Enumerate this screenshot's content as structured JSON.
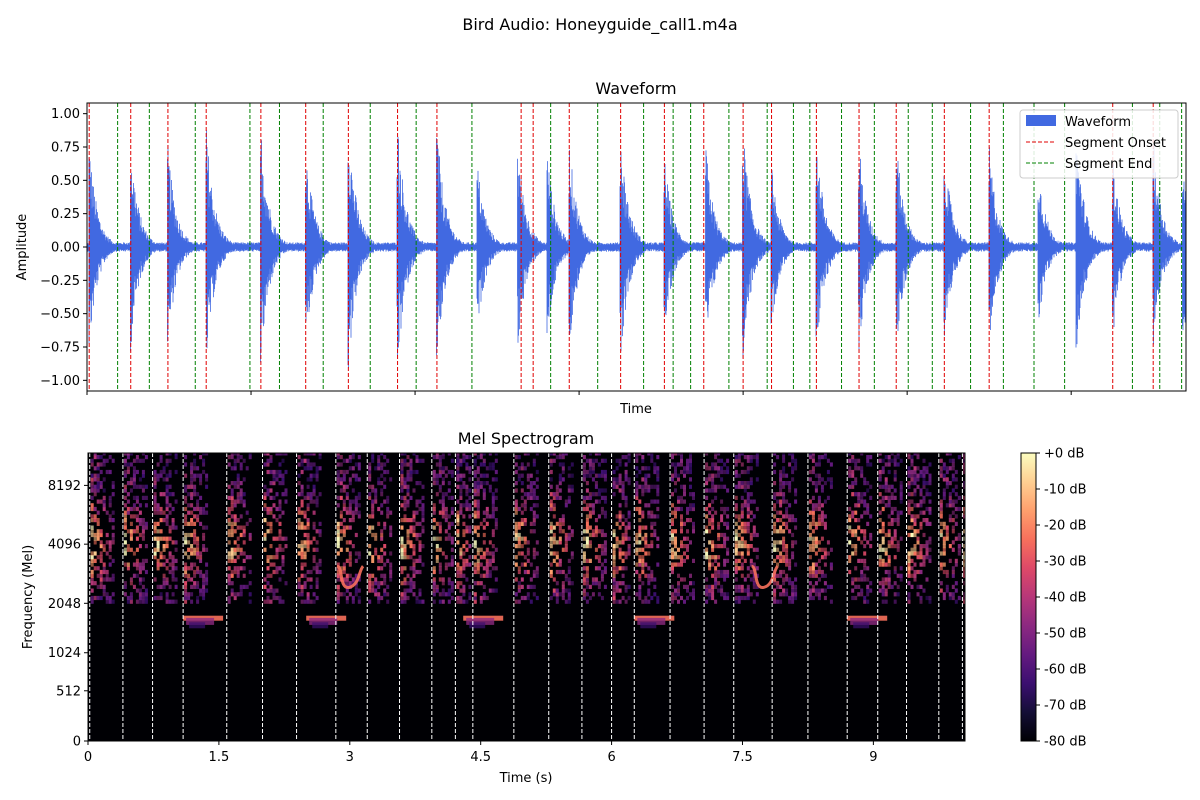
{
  "figure": {
    "suptitle": "Bird Audio: Honeyguide_call1.m4a"
  },
  "chart_data": [
    {
      "type": "line",
      "title": "Waveform",
      "xlabel": "Time",
      "ylabel": "Amplitude",
      "xlim": [
        0,
        10.05
      ],
      "ylim": [
        -1.08,
        1.08
      ],
      "yticks": [
        1.0,
        0.75,
        0.5,
        0.25,
        0.0,
        -0.25,
        -0.5,
        -0.75,
        -1.0
      ],
      "ytick_labels": [
        "1.00",
        "0.75",
        "0.50",
        "0.25",
        "0.00",
        "−0.25",
        "−0.50",
        "−0.75",
        "−1.00"
      ],
      "xticks": [
        0,
        1.5,
        3,
        4.5,
        6,
        7.5,
        9
      ],
      "legend": {
        "location": "upper right",
        "entries": [
          {
            "label": "Waveform",
            "color": "#4169e1",
            "style": "patch"
          },
          {
            "label": "Segment Onset",
            "color": "#e00000",
            "style": "dashed"
          },
          {
            "label": "Segment End",
            "color": "#008000",
            "style": "dashed"
          }
        ]
      },
      "segment_onsets": [
        0.02,
        0.4,
        0.74,
        1.09,
        1.59,
        2.0,
        2.39,
        2.84,
        3.2,
        3.97,
        4.08,
        4.41,
        4.88,
        5.28,
        5.64,
        6.0,
        6.26,
        6.67,
        7.06,
        7.4,
        7.84,
        8.25,
        9.38,
        9.75,
        10.09
      ],
      "segment_ends": [
        0.28,
        0.57,
        0.99,
        1.49,
        1.76,
        2.16,
        2.59,
        3.01,
        3.52,
        4.24,
        4.67,
        5.09,
        5.36,
        5.52,
        5.87,
        6.22,
        6.46,
        6.61,
        6.9,
        7.2,
        7.51,
        7.73,
        8.08,
        8.38,
        8.66,
        8.94,
        9.56,
        9.81,
        10.01,
        10.18
      ],
      "event_times": [
        0.02,
        0.4,
        0.74,
        1.09,
        1.59,
        2.0,
        2.39,
        2.84,
        3.2,
        3.57,
        3.94,
        4.21,
        4.41,
        4.88,
        5.28,
        5.66,
        6.0,
        6.26,
        6.67,
        7.06,
        7.4,
        7.84,
        8.25,
        8.7,
        9.05,
        9.38,
        9.75,
        10.02
      ],
      "event_peaks": [
        0.8,
        0.79,
        0.78,
        0.93,
        0.92,
        0.78,
        0.96,
        0.96,
        0.93,
        0.65,
        0.78,
        0.72,
        0.82,
        0.86,
        0.7,
        0.77,
        0.9,
        0.62,
        0.83,
        0.8,
        0.83,
        0.74,
        0.79,
        0.62,
        0.86,
        0.7,
        0.84,
        0.83
      ]
    },
    {
      "type": "heatmap",
      "title": "Mel Spectrogram",
      "xlabel": "Time (s)",
      "ylabel": "Frequency (Mel)",
      "xlim": [
        0,
        10.05
      ],
      "xticks": [
        0,
        1.5,
        3,
        4.5,
        6,
        7.5,
        9
      ],
      "xtick_labels": [
        "0",
        "1.5",
        "3",
        "4.5",
        "6",
        "7.5",
        "9"
      ],
      "ytick_labels": [
        "0",
        "512",
        "1024",
        "2048",
        "4096",
        "8192"
      ],
      "ytick_mel": [
        0,
        569,
        1000,
        1560,
        2230,
        2896
      ],
      "mel_max": 3263,
      "colormap": "magma",
      "colorbar": {
        "range_db": [
          -80,
          0
        ],
        "tick_labels": [
          "+0 dB",
          "-10 dB",
          "-20 dB",
          "-30 dB",
          "-40 dB",
          "-50 dB",
          "-60 dB",
          "-70 dB",
          "-80 dB"
        ]
      },
      "beat_lines_s": [
        0.02,
        0.4,
        0.74,
        1.09,
        1.59,
        2.0,
        2.39,
        2.84,
        3.2,
        3.57,
        3.94,
        4.21,
        4.41,
        4.88,
        5.28,
        5.66,
        6.0,
        6.26,
        6.67,
        7.06,
        7.4,
        7.84,
        8.25,
        8.7,
        9.05,
        9.38,
        9.75,
        10.02
      ],
      "whistle_times_s": [
        1.09,
        2.5,
        4.3,
        6.26,
        8.7
      ],
      "glide_times_s": [
        2.9,
        7.65
      ]
    }
  ]
}
